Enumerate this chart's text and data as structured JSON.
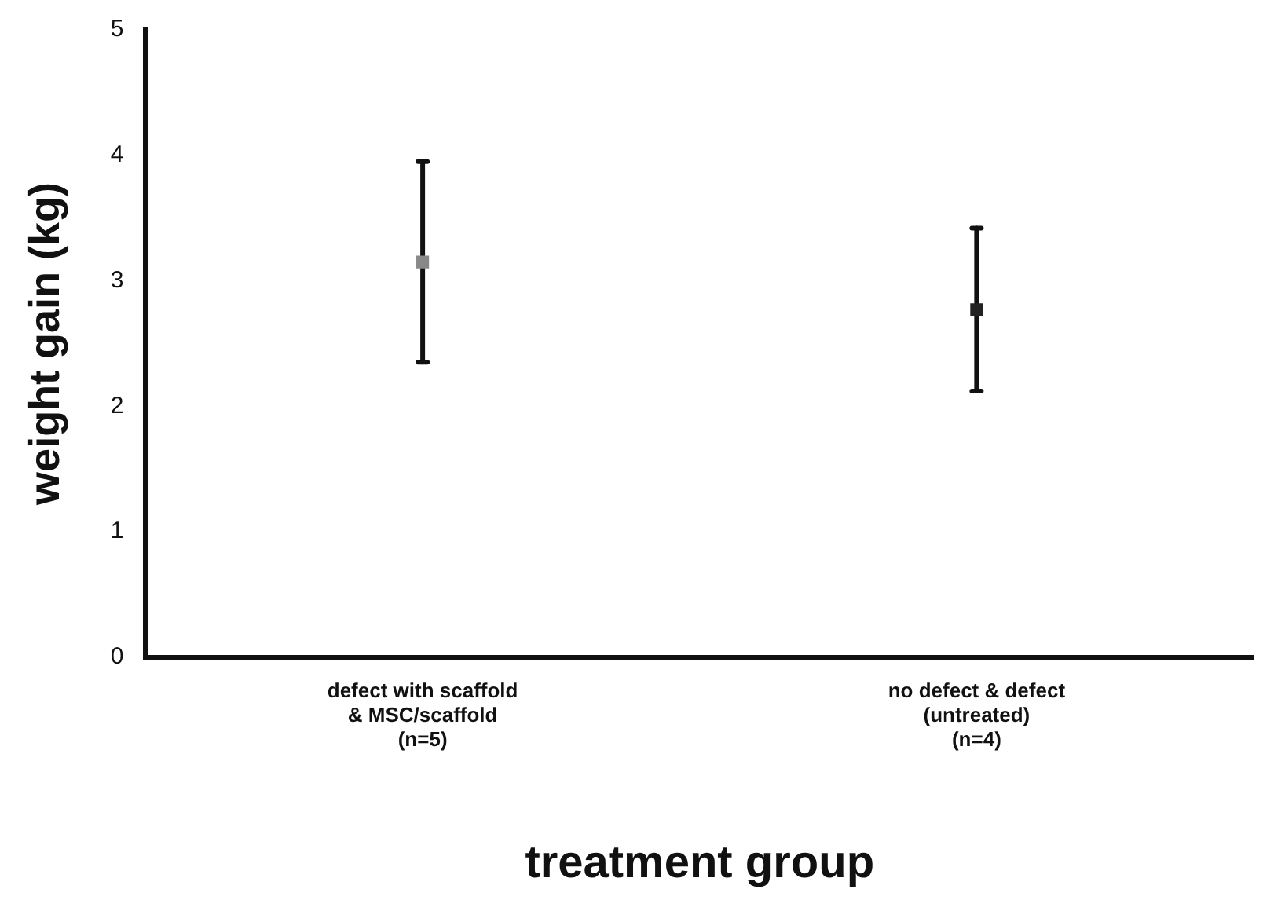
{
  "chart_data": {
    "type": "scatter",
    "xlabel": "treatment group",
    "ylabel": "weight gain (kg)",
    "categories": [
      "defect with scaffold\n& MSC/scaffold\n(n=5)",
      "no defect & defect\n(untreated)\n(n=4)"
    ],
    "values": [
      3.15,
      2.77
    ],
    "errors": [
      0.8,
      0.65
    ],
    "colors": [
      "#888888",
      "#222222"
    ],
    "marker": "square",
    "ylim": [
      0,
      5
    ],
    "yticks": [
      0,
      1,
      2,
      3,
      4,
      5
    ],
    "grid": false,
    "legend": false
  }
}
